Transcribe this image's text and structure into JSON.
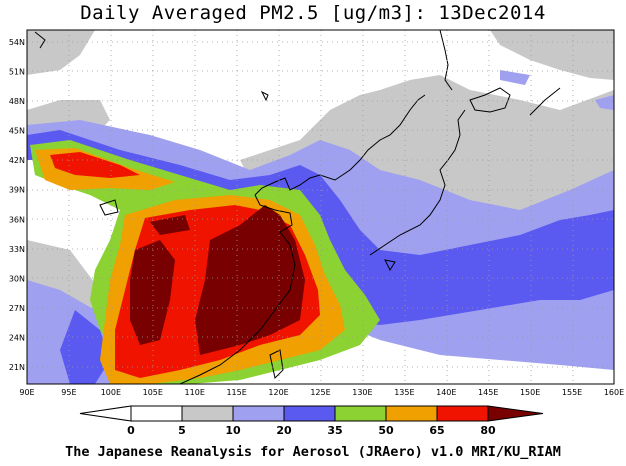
{
  "title": "Daily Averaged PM2.5 [ug/m3]: 13Dec2014",
  "footer": "The Japanese Reanalysis for Aerosol (JRAero) v1.0 MRI/KU_RIAM",
  "axes": {
    "lon_labels": [
      "90E",
      "95E",
      "100E",
      "105E",
      "110E",
      "115E",
      "120E",
      "125E",
      "130E",
      "135E",
      "140E",
      "145E",
      "150E",
      "155E",
      "160E"
    ],
    "lat_labels": [
      "54N",
      "51N",
      "48N",
      "45N",
      "42N",
      "39N",
      "36N",
      "33N",
      "30N",
      "27N",
      "24N",
      "21N"
    ]
  },
  "colorbar": {
    "levels": [
      "0",
      "5",
      "10",
      "20",
      "35",
      "50",
      "65",
      "80"
    ],
    "colors": [
      "#ffffff",
      "#ffffff",
      "#c8c8c8",
      "#a0a0f0",
      "#5a5af0",
      "#8cd232",
      "#f0a000",
      "#f01400",
      "#780000"
    ]
  },
  "palette": {
    "grey": "#c8c8c8",
    "light_blue": "#a0a0f0",
    "blue": "#5a5af0",
    "green": "#8cd232",
    "orange": "#f0a000",
    "red": "#f01400",
    "dark_red": "#780000"
  }
}
